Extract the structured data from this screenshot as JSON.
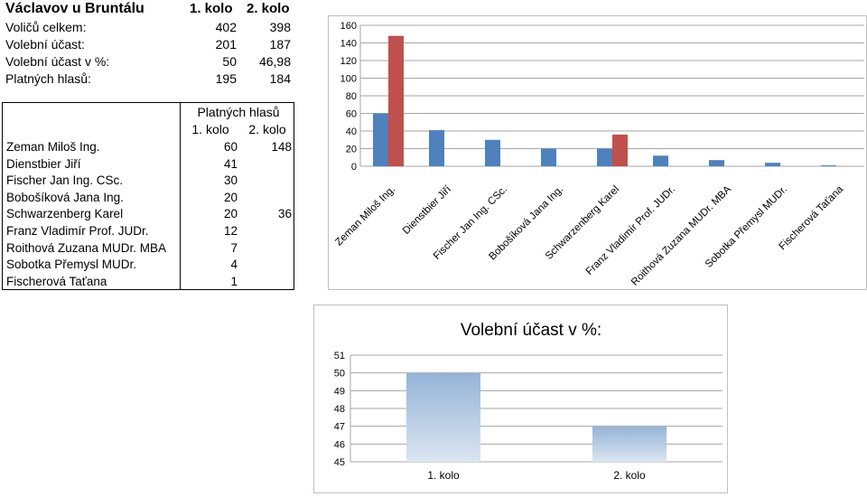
{
  "header": {
    "title": "Václavov u Bruntálu",
    "round1": "1. kolo",
    "round2": "2. kolo"
  },
  "summary": [
    {
      "label": "Voličů celkem:",
      "r1": "402",
      "r2": "398"
    },
    {
      "label": "Volební účast:",
      "r1": "201",
      "r2": "187"
    },
    {
      "label": "Volební účast v %:",
      "r1": "50",
      "r2": "46,98"
    },
    {
      "label": "Platných hlasů:",
      "r1": "195",
      "r2": "184"
    }
  ],
  "candidates_table": {
    "header": "Platných hlasů",
    "col1": "1. kolo",
    "col2": "2. kolo",
    "rows": [
      {
        "name": "Zeman Miloš Ing.",
        "r1": "60",
        "r2": "148"
      },
      {
        "name": "Dienstbier Jiří",
        "r1": "41",
        "r2": ""
      },
      {
        "name": "Fischer Jan Ing. CSc.",
        "r1": "30",
        "r2": ""
      },
      {
        "name": "Bobošíková Jana Ing.",
        "r1": "20",
        "r2": ""
      },
      {
        "name": "Schwarzenberg Karel",
        "r1": "20",
        "r2": "36"
      },
      {
        "name": "Franz Vladimír Prof. JUDr.",
        "r1": "12",
        "r2": ""
      },
      {
        "name": "Roithová Zuzana MUDr. MBA",
        "r1": "7",
        "r2": ""
      },
      {
        "name": "Sobotka Přemysl MUDr.",
        "r1": "4",
        "r2": ""
      },
      {
        "name": "Fischerová Taťana",
        "r1": "1",
        "r2": ""
      }
    ]
  },
  "chart_data": [
    {
      "type": "bar",
      "title": "",
      "categories": [
        "Zeman Miloš Ing.",
        "Dienstbier Jiří",
        "Fischer Jan Ing. CSc.",
        "Bobošíková Jana Ing.",
        "Schwarzenberg Karel",
        "Franz Vladimír Prof. JUDr.",
        "Roithová Zuzana MUDr. MBA",
        "Sobotka Přemysl MUDr.",
        "Fischerová Taťana"
      ],
      "series": [
        {
          "values": [
            60,
            41,
            30,
            20,
            20,
            12,
            7,
            4,
            1
          ],
          "color": "#4f81bd"
        },
        {
          "values": [
            148,
            null,
            null,
            null,
            36,
            null,
            null,
            null,
            null
          ],
          "color": "#c0504d"
        }
      ],
      "ylim": [
        0,
        160
      ],
      "yticks": [
        "0",
        "20",
        "40",
        "60",
        "80",
        "100",
        "120",
        "140",
        "160"
      ],
      "grid": true
    },
    {
      "type": "bar",
      "title": "Volební účast v %:",
      "categories": [
        "1. kolo",
        "2. kolo"
      ],
      "values": [
        50,
        46.98
      ],
      "ylim": [
        45,
        51
      ],
      "yticks": [
        "45",
        "46",
        "47",
        "48",
        "49",
        "50",
        "51"
      ],
      "grid": true,
      "color": "#95b3d7"
    }
  ]
}
